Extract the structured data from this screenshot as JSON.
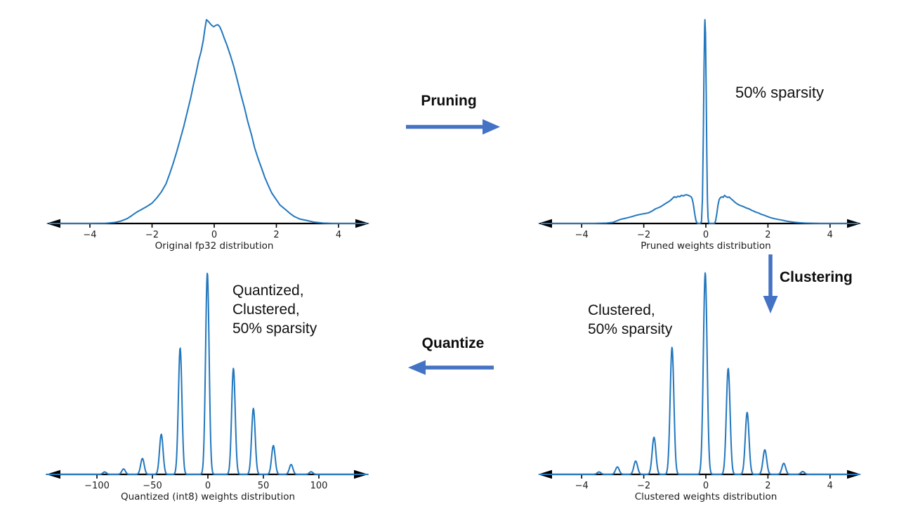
{
  "colors": {
    "background": "#ffffff",
    "curve": "#2277bd",
    "axis": "#000000",
    "plot_text": "#1c1c1c",
    "annotation_text": "#111111",
    "flow_arrow": "#4472c4"
  },
  "annotations": {
    "pruning_label": "Pruning",
    "clustering_label": "Clustering",
    "quantize_label": "Quantize",
    "sparsity_note_top": "50% sparsity",
    "clustered_note": [
      "Clustered,",
      "50% sparsity"
    ],
    "quantized_note": [
      "Quantized,",
      "Clustered,",
      "50% sparsity"
    ]
  },
  "chart_data": [
    {
      "id": "original",
      "type": "line",
      "title": "",
      "xlabel": "Original fp32 distribution",
      "ylabel": "",
      "x_ticks": [
        -4,
        -2,
        0,
        2,
        4
      ],
      "xlim": [
        -5.4,
        5.0
      ],
      "ylim": [
        0,
        1.05
      ],
      "grid": false,
      "legend": "none",
      "description": "Smooth bell-shaped KDE of fp32 weights, peak near -0.25 with slight double hump",
      "points": [
        [
          -5.3,
          0
        ],
        [
          -4.0,
          0
        ],
        [
          -3.5,
          0.001
        ],
        [
          -3.2,
          0.005
        ],
        [
          -3.0,
          0.012
        ],
        [
          -2.8,
          0.024
        ],
        [
          -2.66,
          0.038
        ],
        [
          -2.5,
          0.055
        ],
        [
          -2.3,
          0.072
        ],
        [
          -2.15,
          0.085
        ],
        [
          -2.0,
          0.1
        ],
        [
          -1.85,
          0.125
        ],
        [
          -1.7,
          0.155
        ],
        [
          -1.55,
          0.195
        ],
        [
          -1.43,
          0.245
        ],
        [
          -1.32,
          0.295
        ],
        [
          -1.21,
          0.35
        ],
        [
          -1.1,
          0.41
        ],
        [
          -0.98,
          0.476
        ],
        [
          -0.87,
          0.545
        ],
        [
          -0.76,
          0.614
        ],
        [
          -0.67,
          0.68
        ],
        [
          -0.58,
          0.74
        ],
        [
          -0.5,
          0.8
        ],
        [
          -0.42,
          0.845
        ],
        [
          -0.35,
          0.9
        ],
        [
          -0.3,
          0.955
        ],
        [
          -0.25,
          1.0
        ],
        [
          -0.18,
          0.99
        ],
        [
          -0.1,
          0.975
        ],
        [
          -0.02,
          0.965
        ],
        [
          0.06,
          0.973
        ],
        [
          0.12,
          0.975
        ],
        [
          0.18,
          0.965
        ],
        [
          0.25,
          0.94
        ],
        [
          0.32,
          0.91
        ],
        [
          0.4,
          0.879
        ],
        [
          0.52,
          0.825
        ],
        [
          0.63,
          0.77
        ],
        [
          0.74,
          0.705
        ],
        [
          0.85,
          0.638
        ],
        [
          0.97,
          0.57
        ],
        [
          1.08,
          0.5
        ],
        [
          1.2,
          0.435
        ],
        [
          1.3,
          0.372
        ],
        [
          1.42,
          0.315
        ],
        [
          1.53,
          0.269
        ],
        [
          1.63,
          0.225
        ],
        [
          1.73,
          0.19
        ],
        [
          1.85,
          0.15
        ],
        [
          1.98,
          0.121
        ],
        [
          2.12,
          0.09
        ],
        [
          2.29,
          0.069
        ],
        [
          2.45,
          0.048
        ],
        [
          2.58,
          0.034
        ],
        [
          2.75,
          0.022
        ],
        [
          2.97,
          0.015
        ],
        [
          3.2,
          0.007
        ],
        [
          3.5,
          0.002
        ],
        [
          3.8,
          0
        ],
        [
          4.9,
          0
        ]
      ]
    },
    {
      "id": "pruned",
      "type": "line",
      "title": "",
      "xlabel": "Pruned weights distribution",
      "ylabel": "",
      "x_ticks": [
        -4,
        -2,
        0,
        2,
        4
      ],
      "xlim": [
        -5.4,
        5.0
      ],
      "ylim": [
        0,
        1.05
      ],
      "grid": false,
      "legend": "none",
      "description": "Tall narrow spike at 0 with low side lobes; weights near +/-0.3 pruned to zero",
      "points": [
        [
          -5.3,
          0
        ],
        [
          -3.6,
          0
        ],
        [
          -3.2,
          0.002
        ],
        [
          -3.0,
          0.005
        ],
        [
          -2.75,
          0.02
        ],
        [
          -2.55,
          0.027
        ],
        [
          -2.4,
          0.033
        ],
        [
          -2.25,
          0.04
        ],
        [
          -2.1,
          0.045
        ],
        [
          -1.95,
          0.049
        ],
        [
          -1.85,
          0.052
        ],
        [
          -1.72,
          0.062
        ],
        [
          -1.62,
          0.072
        ],
        [
          -1.52,
          0.078
        ],
        [
          -1.45,
          0.083
        ],
        [
          -1.38,
          0.09
        ],
        [
          -1.31,
          0.097
        ],
        [
          -1.22,
          0.105
        ],
        [
          -1.15,
          0.112
        ],
        [
          -1.08,
          0.122
        ],
        [
          -1.02,
          0.131
        ],
        [
          -0.95,
          0.128
        ],
        [
          -0.9,
          0.134
        ],
        [
          -0.84,
          0.131
        ],
        [
          -0.79,
          0.138
        ],
        [
          -0.73,
          0.135
        ],
        [
          -0.68,
          0.139
        ],
        [
          -0.63,
          0.141
        ],
        [
          -0.58,
          0.139
        ],
        [
          -0.52,
          0.135
        ],
        [
          -0.47,
          0.13
        ],
        [
          -0.44,
          0.12
        ],
        [
          -0.41,
          0.1
        ],
        [
          -0.38,
          0.07
        ],
        [
          -0.35,
          0.04
        ],
        [
          -0.32,
          0.015
        ],
        [
          -0.29,
          0.004
        ],
        [
          -0.25,
          0
        ],
        [
          -0.18,
          0
        ],
        [
          -0.14,
          0.01
        ],
        [
          -0.11,
          0.12
        ],
        [
          -0.08,
          0.45
        ],
        [
          -0.06,
          0.75
        ],
        [
          -0.04,
          0.96
        ],
        [
          -0.03,
          1.0
        ],
        [
          -0.01,
          0.93
        ],
        [
          0.01,
          0.66
        ],
        [
          0.03,
          0.35
        ],
        [
          0.05,
          0.12
        ],
        [
          0.07,
          0.03
        ],
        [
          0.09,
          0.005
        ],
        [
          0.12,
          0
        ],
        [
          0.27,
          0
        ],
        [
          0.31,
          0.01
        ],
        [
          0.35,
          0.045
        ],
        [
          0.39,
          0.09
        ],
        [
          0.43,
          0.118
        ],
        [
          0.47,
          0.127
        ],
        [
          0.52,
          0.131
        ],
        [
          0.56,
          0.128
        ],
        [
          0.6,
          0.138
        ],
        [
          0.65,
          0.132
        ],
        [
          0.7,
          0.128
        ],
        [
          0.75,
          0.13
        ],
        [
          0.79,
          0.124
        ],
        [
          0.86,
          0.115
        ],
        [
          0.93,
          0.105
        ],
        [
          1.0,
          0.097
        ],
        [
          1.08,
          0.09
        ],
        [
          1.17,
          0.085
        ],
        [
          1.25,
          0.08
        ],
        [
          1.32,
          0.075
        ],
        [
          1.39,
          0.072
        ],
        [
          1.47,
          0.065
        ],
        [
          1.55,
          0.06
        ],
        [
          1.62,
          0.055
        ],
        [
          1.69,
          0.052
        ],
        [
          1.77,
          0.046
        ],
        [
          1.85,
          0.042
        ],
        [
          1.92,
          0.038
        ],
        [
          1.99,
          0.034
        ],
        [
          2.1,
          0.028
        ],
        [
          2.2,
          0.024
        ],
        [
          2.32,
          0.02
        ],
        [
          2.44,
          0.017
        ],
        [
          2.58,
          0.012
        ],
        [
          2.7,
          0.009
        ],
        [
          2.85,
          0.006
        ],
        [
          3.0,
          0.004
        ],
        [
          3.2,
          0.002
        ],
        [
          3.45,
          0.001
        ],
        [
          3.7,
          0
        ],
        [
          4.9,
          0
        ]
      ]
    },
    {
      "id": "clustered",
      "type": "line",
      "title": "",
      "xlabel": "Clustered weights distribution",
      "ylabel": "",
      "x_ticks": [
        -4,
        -2,
        0,
        2,
        4
      ],
      "xlim": [
        -5.4,
        5.0
      ],
      "ylim": [
        0,
        1.05
      ],
      "grid": false,
      "legend": "none",
      "description": "Narrow spikes at cluster centroids after weight clustering",
      "centroids": [
        -3.44,
        -2.85,
        -2.26,
        -1.67,
        -1.09,
        -0.02,
        0.72,
        1.33,
        1.9,
        2.51,
        3.12
      ],
      "heights": [
        0.012,
        0.037,
        0.066,
        0.184,
        0.63,
        1.0,
        0.526,
        0.307,
        0.122,
        0.055,
        0.014
      ],
      "peak_sigma": 0.06
    },
    {
      "id": "quantized",
      "type": "line",
      "title": "",
      "xlabel": "Quantized (int8) weights distribution",
      "ylabel": "",
      "x_ticks": [
        -100,
        -50,
        0,
        50,
        100
      ],
      "xlim": [
        -146,
        144
      ],
      "ylim": [
        0,
        1.05
      ],
      "grid": false,
      "legend": "none",
      "description": "Narrow spikes at int8 quantized cluster centroids",
      "centroids": [
        -93,
        -76,
        -59,
        -42,
        -25,
        -0.5,
        23,
        41,
        59,
        75,
        93
      ],
      "heights": [
        0.012,
        0.027,
        0.079,
        0.199,
        0.627,
        1.0,
        0.526,
        0.327,
        0.143,
        0.049,
        0.013
      ],
      "peak_sigma": 1.6
    }
  ]
}
